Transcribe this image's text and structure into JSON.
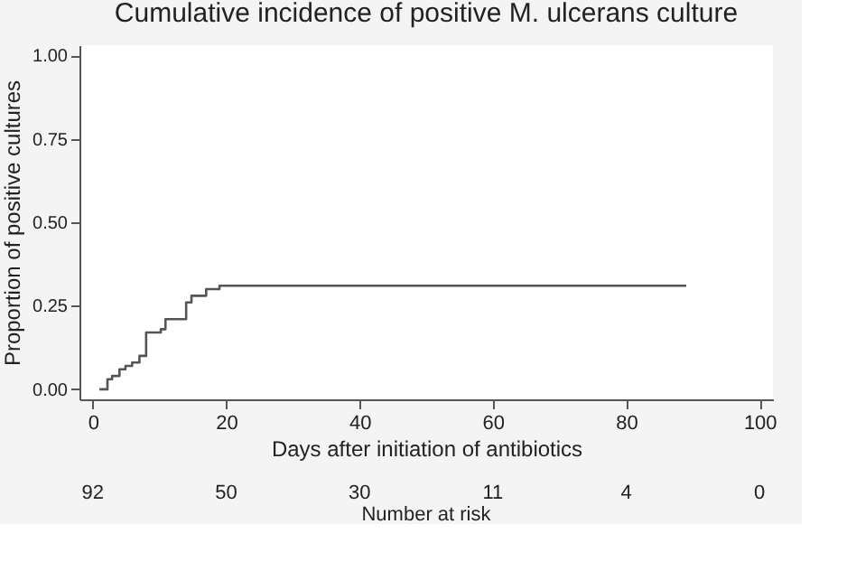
{
  "chart_data": {
    "type": "step",
    "title": "Cumulative incidence of positive M. ulcerans culture",
    "xlabel": "Days after initiation of antibiotics",
    "ylabel": "Proportion of positive cultures",
    "x": [
      1,
      2.2,
      2.9,
      4.0,
      4.9,
      5.9,
      7.0,
      8.0,
      10.2,
      10.9,
      14.0,
      14.8,
      17.0,
      19.0,
      89
    ],
    "series": [
      {
        "color": "#555555",
        "values": [
          0,
          0.03,
          0.04,
          0.06,
          0.07,
          0.08,
          0.1,
          0.17,
          0.18,
          0.21,
          0.26,
          0.28,
          0.3,
          0.31,
          0.31
        ]
      }
    ],
    "xlim": [
      -2,
      102
    ],
    "xticks": [
      0,
      20,
      40,
      60,
      80,
      100
    ],
    "ylim": [
      -0.03,
      1.03
    ],
    "yticks": [
      {
        "value": 0,
        "label": "0.00"
      },
      {
        "value": 0.25,
        "label": "0.25"
      },
      {
        "value": 0.5,
        "label": "0.50"
      },
      {
        "value": 0.75,
        "label": "0.75"
      },
      {
        "value": 1,
        "label": "1.00"
      }
    ],
    "grid": false,
    "marker": "none",
    "line_style": "solid",
    "annotations": [
      "92",
      "50",
      "30",
      "11",
      "4",
      "0",
      "Number at risk"
    ]
  }
}
